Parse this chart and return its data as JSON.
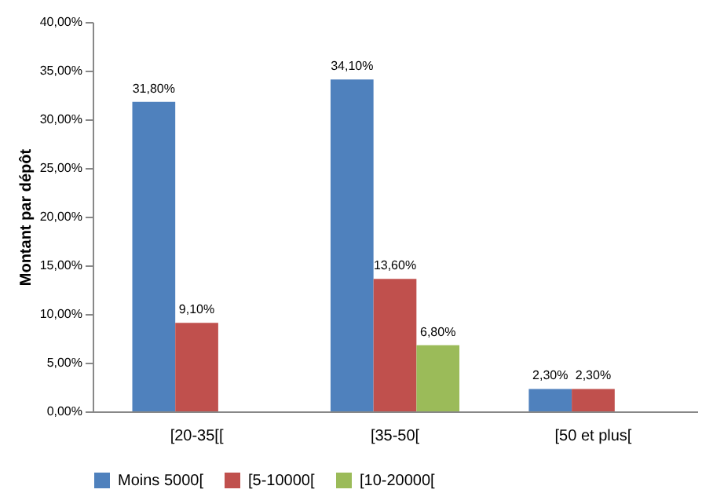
{
  "chart_data": {
    "type": "bar",
    "ylabel": "Montant par dépôt",
    "categories": [
      "[20-35[[",
      "[35-50[",
      "[50 et plus["
    ],
    "series": [
      {
        "name": "Moins 5000[",
        "color": "#4f81bd",
        "values": [
          31.8,
          34.1,
          2.3
        ],
        "value_labels": [
          "31,80%",
          "34,10%",
          "2,30%"
        ]
      },
      {
        "name": "[5-10000[",
        "color": "#c0504d",
        "values": [
          9.1,
          13.6,
          2.3
        ],
        "value_labels": [
          "9,10%",
          "13,60%",
          "2,30%"
        ]
      },
      {
        "name": "[10-20000[",
        "color": "#9bbb59",
        "values": [
          null,
          6.8,
          null
        ],
        "value_labels": [
          null,
          "6,80%",
          null
        ]
      }
    ],
    "ylim": [
      0,
      40
    ],
    "yticks": [
      {
        "value": 0,
        "label": "0,00%"
      },
      {
        "value": 5,
        "label": "5,00%"
      },
      {
        "value": 10,
        "label": "10,00%"
      },
      {
        "value": 15,
        "label": "15,00%"
      },
      {
        "value": 20,
        "label": "20,00%"
      },
      {
        "value": 25,
        "label": "25,00%"
      },
      {
        "value": 30,
        "label": "30,00%"
      },
      {
        "value": 35,
        "label": "35,00%"
      },
      {
        "value": 40,
        "label": "40,00%"
      }
    ],
    "legend": "bottom",
    "grid": false
  }
}
